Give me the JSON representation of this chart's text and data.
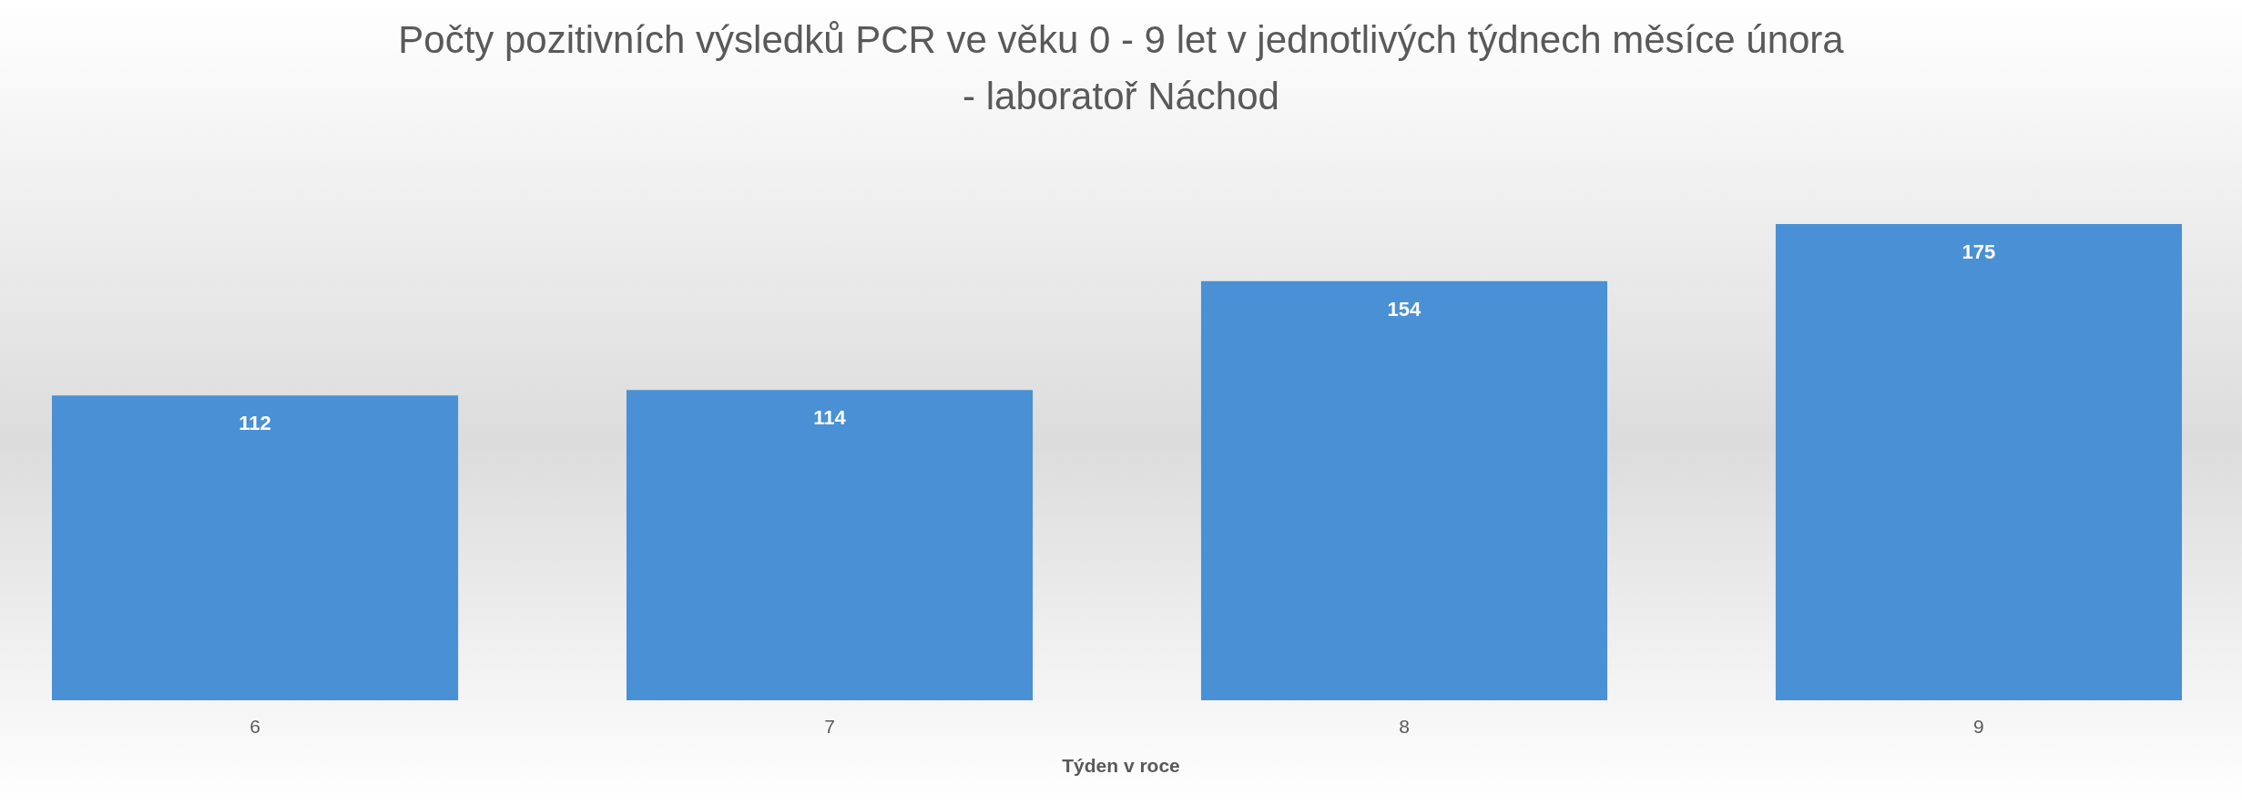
{
  "chart_data": {
    "type": "bar",
    "title": "Počty pozitivních výsledků PCR ve věku 0 - 9 let v jednotlivých týdnech měsíce února\n- laboratoř Náchod",
    "xlabel": "Týden v roce",
    "categories": [
      "6",
      "7",
      "8",
      "9"
    ],
    "values": [
      112,
      114,
      154,
      175
    ],
    "color": "#4a90d4",
    "data_labels": true
  }
}
